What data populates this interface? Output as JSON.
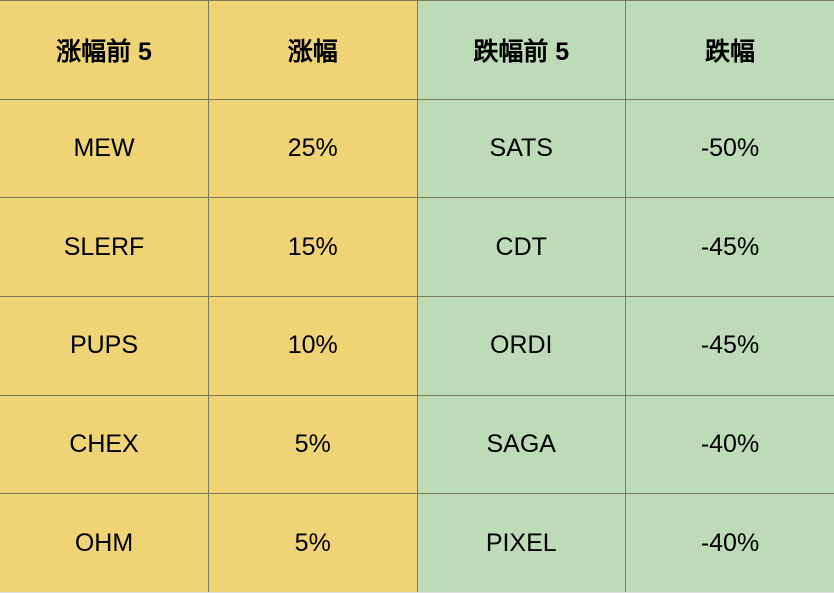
{
  "table": {
    "colors": {
      "gain_bg": "#f0d375",
      "loss_bg": "#bedbb8",
      "border": "#7a7a5a",
      "text": "#000000",
      "bottom_border": "#dedede"
    },
    "header_fontsize": 25,
    "cell_fontsize": 25,
    "columns": [
      "涨幅前 5",
      "涨幅",
      "跌幅前 5",
      "跌幅"
    ],
    "rows": [
      [
        "MEW",
        "25%",
        "SATS",
        "-50%"
      ],
      [
        "SLERF",
        "15%",
        "CDT",
        "-45%"
      ],
      [
        "PUPS",
        "10%",
        "ORDI",
        "-45%"
      ],
      [
        "CHEX",
        "5%",
        "SAGA",
        "-40%"
      ],
      [
        "OHM",
        "5%",
        "PIXEL",
        "-40%"
      ]
    ]
  }
}
